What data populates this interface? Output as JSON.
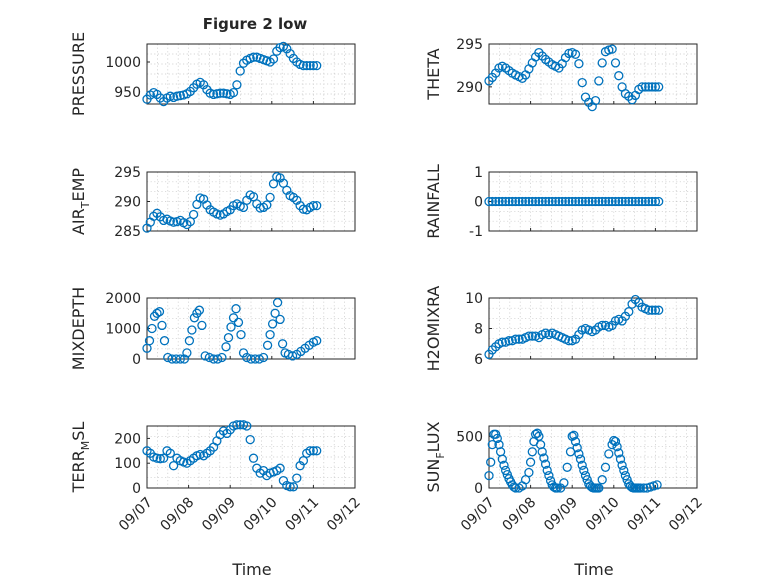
{
  "chart_data": [
    {
      "type": "scatter",
      "title": "Figure 2 low",
      "ylabel": "PRESSURE",
      "ylim": [
        930,
        1030
      ],
      "yticks": [
        950,
        1000
      ],
      "xlim": [
        0,
        5
      ],
      "xticks": [
        0,
        1,
        2,
        3,
        4,
        5
      ],
      "xticklabels": [
        "09/07",
        "09/08",
        "09/09",
        "09/10",
        "09/11",
        "09/12"
      ],
      "x": [
        0.0,
        0.08,
        0.16,
        0.24,
        0.32,
        0.4,
        0.48,
        0.56,
        0.64,
        0.72,
        0.8,
        0.88,
        0.96,
        1.04,
        1.12,
        1.2,
        1.28,
        1.36,
        1.44,
        1.52,
        1.6,
        1.68,
        1.76,
        1.84,
        1.92,
        2.0,
        2.08,
        2.16,
        2.24,
        2.32,
        2.4,
        2.48,
        2.56,
        2.64,
        2.72,
        2.8,
        2.88,
        2.96,
        3.04,
        3.12,
        3.2,
        3.28,
        3.36,
        3.44,
        3.52,
        3.6,
        3.68,
        3.76,
        3.84,
        3.92,
        4.0,
        4.08
      ],
      "y": [
        938,
        945,
        949,
        946,
        940,
        934,
        940,
        943,
        941,
        943,
        944,
        945,
        947,
        951,
        957,
        963,
        966,
        962,
        954,
        948,
        946,
        947,
        948,
        948,
        947,
        946,
        949,
        962,
        985,
        998,
        1003,
        1006,
        1008,
        1008,
        1006,
        1004,
        1002,
        1000,
        1005,
        1018,
        1024,
        1026,
        1022,
        1014,
        1006,
        1000,
        996,
        994,
        994,
        994,
        994,
        994
      ]
    },
    {
      "type": "scatter",
      "ylabel": "THETA",
      "ylim": [
        288,
        295
      ],
      "yticks": [
        290,
        295
      ],
      "xlim": [
        0,
        5
      ],
      "xticks": [
        0,
        1,
        2,
        3,
        4,
        5
      ],
      "xticklabels": [
        "09/07",
        "09/08",
        "09/09",
        "09/10",
        "09/11",
        "09/12"
      ],
      "x": [
        0.0,
        0.08,
        0.16,
        0.24,
        0.32,
        0.4,
        0.48,
        0.56,
        0.64,
        0.72,
        0.8,
        0.88,
        0.96,
        1.04,
        1.12,
        1.2,
        1.28,
        1.36,
        1.44,
        1.52,
        1.6,
        1.68,
        1.76,
        1.84,
        1.92,
        2.0,
        2.08,
        2.16,
        2.24,
        2.32,
        2.4,
        2.48,
        2.56,
        2.64,
        2.72,
        2.8,
        2.88,
        2.96,
        3.04,
        3.12,
        3.2,
        3.28,
        3.36,
        3.44,
        3.52,
        3.6,
        3.68,
        3.76,
        3.84,
        3.92,
        4.0,
        4.08
      ],
      "y": [
        290.7,
        291.1,
        291.6,
        292.2,
        292.4,
        292.2,
        291.9,
        291.6,
        291.4,
        291.2,
        291.0,
        291.4,
        292.1,
        292.8,
        293.5,
        294.0,
        293.6,
        293.2,
        292.9,
        292.6,
        292.4,
        292.2,
        292.7,
        293.4,
        293.9,
        294.0,
        293.8,
        292.7,
        290.5,
        288.8,
        288.2,
        287.7,
        288.4,
        290.7,
        292.8,
        294.1,
        294.3,
        294.4,
        292.8,
        291.3,
        290.0,
        289.2,
        288.9,
        288.5,
        289.0,
        289.7,
        290.0,
        290.0,
        290.0,
        290.0,
        290.0,
        290.0
      ]
    },
    {
      "type": "scatter",
      "ylabel": "AIR_TEMP",
      "ylim": [
        285,
        295
      ],
      "yticks": [
        285,
        290,
        295
      ],
      "xlim": [
        0,
        5
      ],
      "xticks": [
        0,
        1,
        2,
        3,
        4,
        5
      ],
      "xticklabels": [
        "09/07",
        "09/08",
        "09/09",
        "09/10",
        "09/11",
        "09/12"
      ],
      "x": [
        0.0,
        0.08,
        0.16,
        0.24,
        0.32,
        0.4,
        0.48,
        0.56,
        0.64,
        0.72,
        0.8,
        0.88,
        0.96,
        1.04,
        1.12,
        1.2,
        1.28,
        1.36,
        1.44,
        1.52,
        1.6,
        1.68,
        1.76,
        1.84,
        1.92,
        2.0,
        2.08,
        2.16,
        2.24,
        2.32,
        2.4,
        2.48,
        2.56,
        2.64,
        2.72,
        2.8,
        2.88,
        2.96,
        3.04,
        3.12,
        3.2,
        3.28,
        3.36,
        3.44,
        3.52,
        3.6,
        3.68,
        3.76,
        3.84,
        3.92,
        4.0,
        4.08
      ],
      "y": [
        285.5,
        286.5,
        287.5,
        288.0,
        287.4,
        286.8,
        287.0,
        286.7,
        286.5,
        286.6,
        286.8,
        286.4,
        286.1,
        286.6,
        287.8,
        289.5,
        290.6,
        290.4,
        289.4,
        288.6,
        288.2,
        287.9,
        287.7,
        287.9,
        288.3,
        288.6,
        289.3,
        289.6,
        289.2,
        289.0,
        290.2,
        291.1,
        290.8,
        289.6,
        288.9,
        289.0,
        289.4,
        290.7,
        293.0,
        294.2,
        294.0,
        293.1,
        291.9,
        291.0,
        290.7,
        290.2,
        289.3,
        288.7,
        288.6,
        289.0,
        289.3,
        289.3
      ]
    },
    {
      "type": "scatter",
      "ylabel": "RAINFALL",
      "ylim": [
        -1,
        1
      ],
      "yticks": [
        -1,
        0,
        1
      ],
      "xlim": [
        0,
        5
      ],
      "xticks": [
        0,
        1,
        2,
        3,
        4,
        5
      ],
      "xticklabels": [
        "09/07",
        "09/08",
        "09/09",
        "09/10",
        "09/11",
        "09/12"
      ],
      "x": [
        0.0,
        0.08,
        0.16,
        0.24,
        0.32,
        0.4,
        0.48,
        0.56,
        0.64,
        0.72,
        0.8,
        0.88,
        0.96,
        1.04,
        1.12,
        1.2,
        1.28,
        1.36,
        1.44,
        1.52,
        1.6,
        1.68,
        1.76,
        1.84,
        1.92,
        2.0,
        2.08,
        2.16,
        2.24,
        2.32,
        2.4,
        2.48,
        2.56,
        2.64,
        2.72,
        2.8,
        2.88,
        2.96,
        3.04,
        3.12,
        3.2,
        3.28,
        3.36,
        3.44,
        3.52,
        3.6,
        3.68,
        3.76,
        3.84,
        3.92,
        4.0,
        4.08
      ],
      "y": [
        0,
        0,
        0,
        0,
        0,
        0,
        0,
        0,
        0,
        0,
        0,
        0,
        0,
        0,
        0,
        0,
        0,
        0,
        0,
        0,
        0,
        0,
        0,
        0,
        0,
        0,
        0,
        0,
        0,
        0,
        0,
        0,
        0,
        0,
        0,
        0,
        0,
        0,
        0,
        0,
        0,
        0,
        0,
        0,
        0,
        0,
        0,
        0,
        0,
        0,
        0,
        0
      ]
    },
    {
      "type": "scatter",
      "ylabel": "MIXDEPTH",
      "ylim": [
        0,
        2000
      ],
      "yticks": [
        0,
        1000,
        2000
      ],
      "xlim": [
        0,
        5
      ],
      "xticks": [
        0,
        1,
        2,
        3,
        4,
        5
      ],
      "xticklabels": [
        "09/07",
        "09/08",
        "09/09",
        "09/10",
        "09/11",
        "09/12"
      ],
      "x": [
        0.0,
        0.06,
        0.12,
        0.18,
        0.24,
        0.3,
        0.36,
        0.42,
        0.5,
        0.6,
        0.7,
        0.8,
        0.9,
        0.96,
        1.02,
        1.08,
        1.14,
        1.2,
        1.26,
        1.32,
        1.4,
        1.5,
        1.6,
        1.7,
        1.8,
        1.9,
        1.96,
        2.02,
        2.08,
        2.14,
        2.2,
        2.26,
        2.32,
        2.4,
        2.5,
        2.6,
        2.7,
        2.8,
        2.9,
        2.96,
        3.02,
        3.08,
        3.14,
        3.2,
        3.26,
        3.32,
        3.4,
        3.5,
        3.6,
        3.7,
        3.8,
        3.9,
        4.0,
        4.08
      ],
      "y": [
        350,
        600,
        1000,
        1400,
        1500,
        1550,
        1100,
        600,
        50,
        0,
        0,
        0,
        0,
        200,
        600,
        950,
        1350,
        1500,
        1600,
        1100,
        100,
        50,
        0,
        0,
        50,
        400,
        700,
        1050,
        1350,
        1650,
        1200,
        800,
        200,
        50,
        0,
        0,
        0,
        50,
        450,
        800,
        1150,
        1500,
        1850,
        1300,
        500,
        200,
        150,
        100,
        150,
        250,
        350,
        450,
        550,
        600
      ]
    },
    {
      "type": "scatter",
      "ylabel": "H2OMIXRA",
      "ylim": [
        6,
        10
      ],
      "yticks": [
        6,
        8,
        10
      ],
      "xlim": [
        0,
        5
      ],
      "xticks": [
        0,
        1,
        2,
        3,
        4,
        5
      ],
      "xticklabels": [
        "09/07",
        "09/08",
        "09/09",
        "09/10",
        "09/11",
        "09/12"
      ],
      "x": [
        0.0,
        0.08,
        0.16,
        0.24,
        0.32,
        0.4,
        0.48,
        0.56,
        0.64,
        0.72,
        0.8,
        0.88,
        0.96,
        1.04,
        1.12,
        1.2,
        1.28,
        1.36,
        1.44,
        1.52,
        1.6,
        1.68,
        1.76,
        1.84,
        1.92,
        2.0,
        2.08,
        2.16,
        2.24,
        2.32,
        2.4,
        2.48,
        2.56,
        2.64,
        2.72,
        2.8,
        2.88,
        2.96,
        3.04,
        3.12,
        3.2,
        3.28,
        3.36,
        3.44,
        3.52,
        3.6,
        3.68,
        3.76,
        3.84,
        3.92,
        4.0,
        4.08
      ],
      "y": [
        6.3,
        6.6,
        6.8,
        7.0,
        7.1,
        7.1,
        7.2,
        7.2,
        7.3,
        7.3,
        7.3,
        7.4,
        7.5,
        7.5,
        7.5,
        7.4,
        7.6,
        7.7,
        7.6,
        7.7,
        7.6,
        7.5,
        7.4,
        7.3,
        7.2,
        7.2,
        7.3,
        7.6,
        7.9,
        8.0,
        7.9,
        7.8,
        7.9,
        8.1,
        8.2,
        8.2,
        8.1,
        8.2,
        8.5,
        8.6,
        8.5,
        8.8,
        9.1,
        9.6,
        9.9,
        9.7,
        9.4,
        9.3,
        9.2,
        9.2,
        9.2,
        9.2
      ]
    },
    {
      "type": "scatter",
      "ylabel": "TERR_MSL",
      "ylim": [
        0,
        250
      ],
      "yticks": [
        0,
        100,
        200
      ],
      "xlim": [
        0,
        5
      ],
      "xticks": [
        0,
        1,
        2,
        3,
        4,
        5
      ],
      "xticklabels": [
        "09/07",
        "09/08",
        "09/09",
        "09/10",
        "09/11",
        "09/12"
      ],
      "x": [
        0.0,
        0.08,
        0.16,
        0.24,
        0.32,
        0.4,
        0.48,
        0.56,
        0.64,
        0.72,
        0.8,
        0.88,
        0.96,
        1.04,
        1.12,
        1.2,
        1.28,
        1.36,
        1.44,
        1.52,
        1.6,
        1.68,
        1.76,
        1.84,
        1.92,
        2.0,
        2.08,
        2.16,
        2.24,
        2.32,
        2.4,
        2.48,
        2.56,
        2.64,
        2.72,
        2.8,
        2.88,
        2.96,
        3.04,
        3.12,
        3.2,
        3.28,
        3.36,
        3.44,
        3.52,
        3.6,
        3.68,
        3.76,
        3.84,
        3.92,
        4.0,
        4.08
      ],
      "y": [
        150,
        140,
        125,
        120,
        118,
        120,
        150,
        140,
        90,
        120,
        110,
        105,
        100,
        110,
        120,
        130,
        135,
        130,
        140,
        150,
        165,
        190,
        215,
        230,
        220,
        235,
        250,
        255,
        255,
        255,
        250,
        195,
        120,
        80,
        60,
        70,
        50,
        60,
        65,
        70,
        80,
        30,
        10,
        5,
        5,
        40,
        90,
        110,
        140,
        150,
        150,
        150
      ]
    },
    {
      "type": "scatter",
      "ylabel": "SUN_FLUX",
      "ylim": [
        0,
        600
      ],
      "yticks": [
        0,
        500
      ],
      "xlim": [
        0,
        5
      ],
      "xticks": [
        0,
        1,
        2,
        3,
        4,
        5
      ],
      "xticklabels": [
        "09/07",
        "09/08",
        "09/09",
        "09/10",
        "09/11",
        "09/12"
      ],
      "x": [
        0.0,
        0.04,
        0.08,
        0.12,
        0.16,
        0.2,
        0.24,
        0.28,
        0.32,
        0.36,
        0.4,
        0.44,
        0.48,
        0.52,
        0.56,
        0.6,
        0.64,
        0.72,
        0.8,
        0.88,
        0.96,
        1.0,
        1.04,
        1.08,
        1.12,
        1.16,
        1.2,
        1.24,
        1.28,
        1.32,
        1.36,
        1.4,
        1.44,
        1.48,
        1.52,
        1.56,
        1.6,
        1.64,
        1.72,
        1.8,
        1.88,
        1.96,
        2.0,
        2.04,
        2.08,
        2.12,
        2.16,
        2.2,
        2.24,
        2.28,
        2.32,
        2.36,
        2.4,
        2.44,
        2.48,
        2.52,
        2.56,
        2.6,
        2.64,
        2.72,
        2.8,
        2.88,
        2.96,
        3.0,
        3.04,
        3.08,
        3.12,
        3.16,
        3.2,
        3.24,
        3.28,
        3.32,
        3.36,
        3.4,
        3.44,
        3.48,
        3.52,
        3.56,
        3.6,
        3.64,
        3.72,
        3.8,
        3.88,
        3.96,
        4.04
      ],
      "y": [
        120,
        250,
        420,
        520,
        520,
        480,
        420,
        350,
        280,
        220,
        170,
        130,
        90,
        60,
        30,
        10,
        0,
        0,
        20,
        80,
        150,
        250,
        350,
        450,
        520,
        530,
        500,
        420,
        350,
        290,
        230,
        170,
        120,
        70,
        30,
        10,
        0,
        0,
        0,
        50,
        200,
        350,
        500,
        510,
        450,
        390,
        330,
        280,
        220,
        170,
        120,
        80,
        40,
        20,
        5,
        0,
        0,
        0,
        0,
        80,
        200,
        330,
        420,
        460,
        450,
        400,
        340,
        280,
        220,
        170,
        120,
        80,
        40,
        20,
        5,
        0,
        0,
        0,
        0,
        0,
        0,
        0,
        10,
        20,
        30
      ]
    }
  ],
  "xlabel_common": "Time"
}
